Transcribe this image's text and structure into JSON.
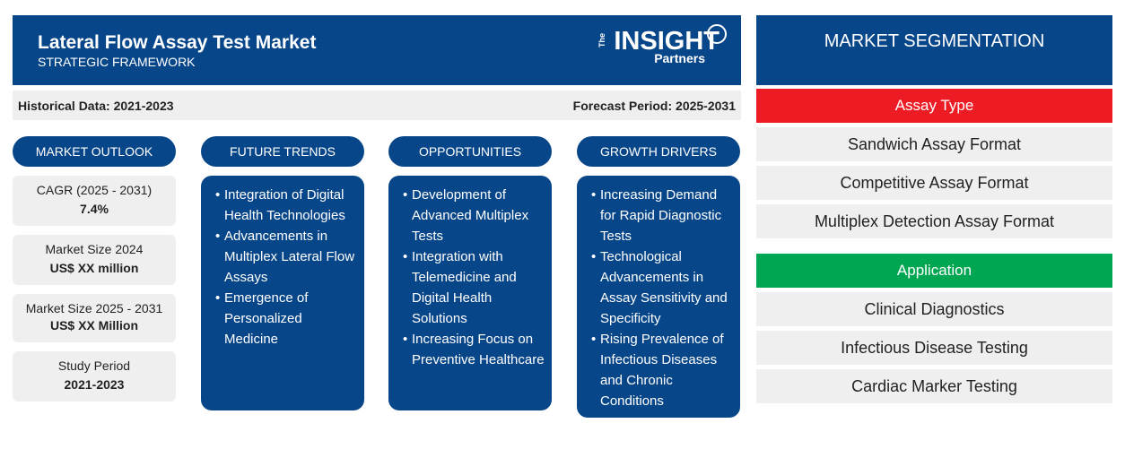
{
  "header": {
    "title": "Lateral Flow Assay Test Market",
    "subtitle": "STRATEGIC FRAMEWORK",
    "logo_the": "The",
    "logo_main": "INSIGHT",
    "logo_sub": "Partners"
  },
  "periods": {
    "historical": "Historical Data: 2021-2023",
    "forecast": "Forecast Period: 2025-2031"
  },
  "columns": {
    "outlook": "MARKET OUTLOOK",
    "trends": "FUTURE TRENDS",
    "opportunities": "OPPORTUNITIES",
    "drivers": "GROWTH DRIVERS"
  },
  "outlook": [
    {
      "label": "CAGR (2025 - 2031)",
      "value": "7.4%"
    },
    {
      "label": "Market Size 2024",
      "value": "US$ XX million"
    },
    {
      "label": "Market Size 2025 - 2031",
      "value": "US$ XX Million"
    },
    {
      "label": "Study Period",
      "value": "2021-2023"
    }
  ],
  "trends": [
    "Integration of Digital Health Technologies",
    "Advancements in Multiplex Lateral Flow Assays",
    "Emergence of Personalized Medicine"
  ],
  "opportunities": [
    "Development of Advanced Multiplex Tests",
    "Integration with Telemedicine and Digital Health Solutions",
    "Increasing Focus on Preventive Healthcare"
  ],
  "drivers": [
    "Increasing Demand for Rapid Diagnostic Tests",
    "Technological Advancements in Assay Sensitivity and Specificity",
    "Rising Prevalence of Infectious Diseases and Chronic Conditions"
  ],
  "segmentation": {
    "title": "MARKET SEGMENTATION",
    "categories": [
      {
        "name": "Assay Type",
        "color": "#ed1c24",
        "items": [
          "Sandwich Assay Format",
          "Competitive Assay Format",
          "Multiplex Detection Assay Format"
        ]
      },
      {
        "name": "Application",
        "color": "#00a651",
        "items": [
          "Clinical Diagnostics",
          "Infectious Disease Testing",
          "Cardiac Marker Testing"
        ]
      }
    ]
  },
  "colors": {
    "primary_blue": "#08468a",
    "light_gray": "#efefef"
  }
}
